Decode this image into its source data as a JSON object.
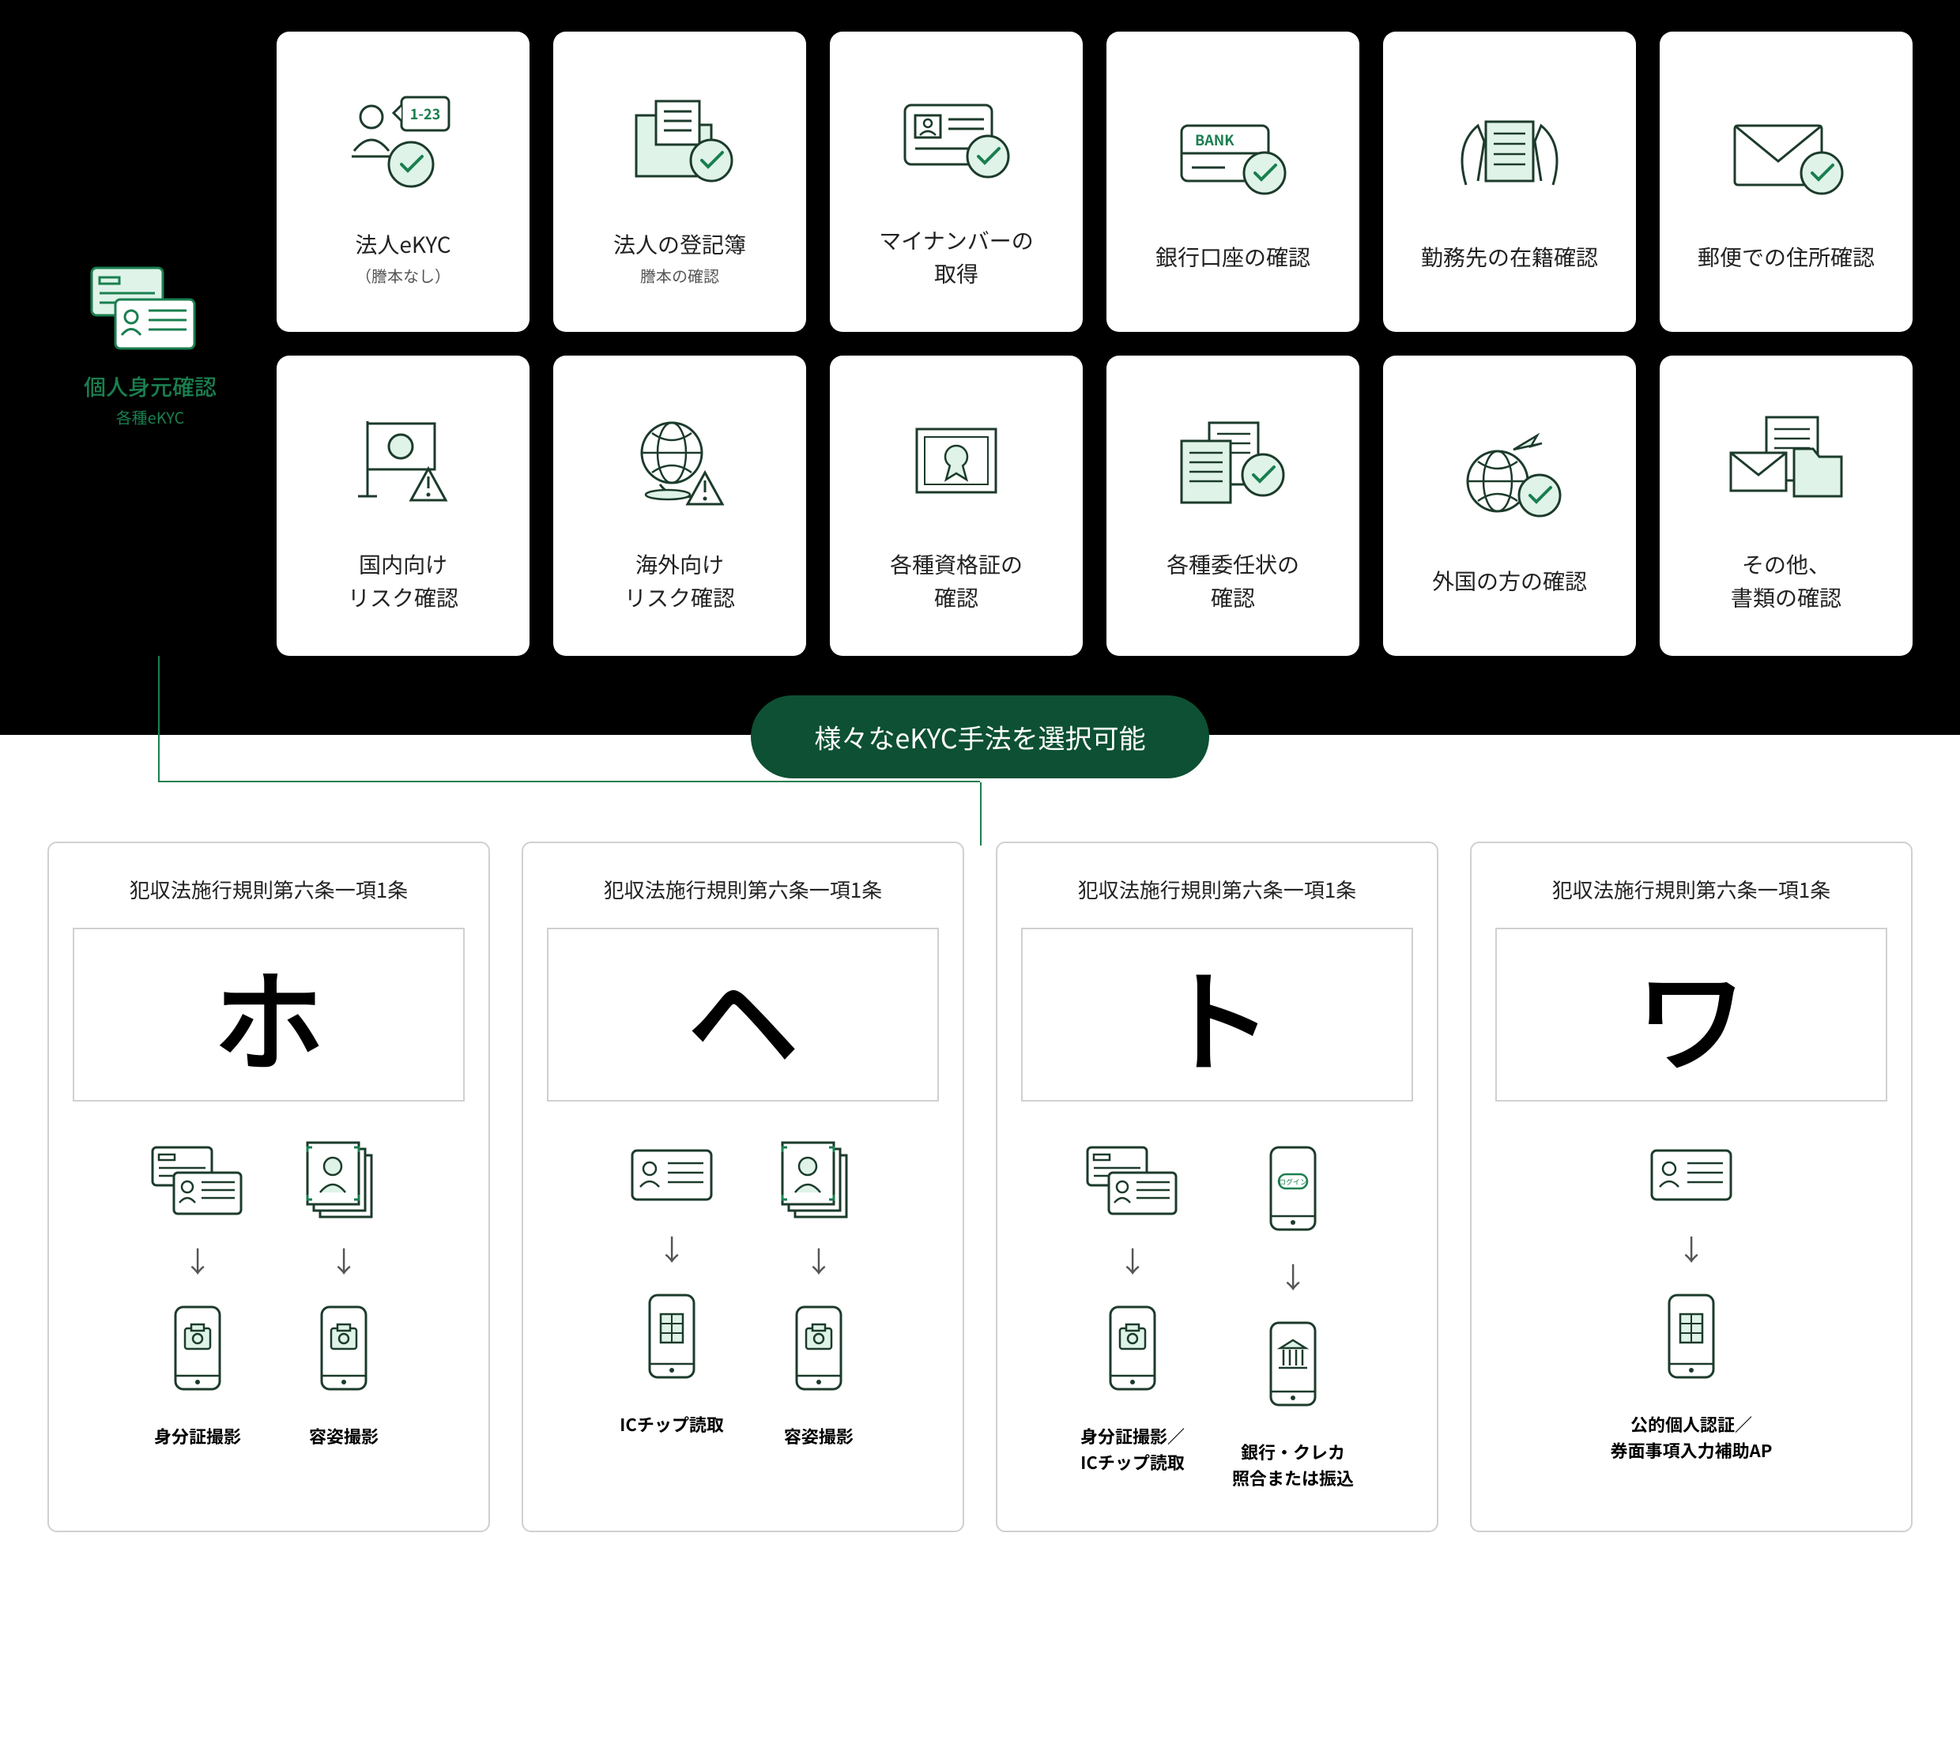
{
  "colors": {
    "green": "#1a7f4f",
    "lightgreen": "#dff3e9",
    "dark": "#0d5033",
    "black": "#000",
    "line": "#1c3b2b"
  },
  "leftCard": {
    "title": "個人身元確認",
    "subtitle": "各種eKYC"
  },
  "cards": {
    "row1": [
      {
        "title": "法人eKYC",
        "subtitle": "（謄本なし）",
        "icon": "corp-ekyc"
      },
      {
        "title": "法人の登記簿",
        "subtitle": "謄本の確認",
        "icon": "registry"
      },
      {
        "title": "マイナンバーの\n取得",
        "subtitle": "",
        "icon": "mynumber"
      },
      {
        "title": "銀行口座の確認",
        "subtitle": "",
        "icon": "bank"
      },
      {
        "title": "勤務先の在籍確認",
        "subtitle": "",
        "icon": "workplace"
      },
      {
        "title": "郵便での住所確認",
        "subtitle": "",
        "icon": "mail"
      }
    ],
    "row2": [
      {
        "title": "国内向け\nリスク確認",
        "subtitle": "",
        "icon": "domestic-risk"
      },
      {
        "title": "海外向け\nリスク確認",
        "subtitle": "",
        "icon": "overseas-risk"
      },
      {
        "title": "各種資格証の\n確認",
        "subtitle": "",
        "icon": "cert"
      },
      {
        "title": "各種委任状の\n確認",
        "subtitle": "",
        "icon": "proxy"
      },
      {
        "title": "外国の方の確認",
        "subtitle": "",
        "icon": "foreigner"
      },
      {
        "title": "その他、\n書類の確認",
        "subtitle": "",
        "icon": "other-docs"
      }
    ]
  },
  "pill": "様々なeKYC手法を選択可能",
  "methods": [
    {
      "header": "犯収法施行規則第六条一項1条",
      "glyph": "ホ",
      "flows": [
        {
          "top": "id-cards",
          "bottom": "phone-cam",
          "label": "身分証撮影"
        },
        {
          "top": "face-photo",
          "bottom": "phone-cam",
          "label": "容姿撮影"
        }
      ]
    },
    {
      "header": "犯収法施行規則第六条一項1条",
      "glyph": "ヘ",
      "flows": [
        {
          "top": "id-single",
          "bottom": "phone-chip",
          "label": "ICチップ読取"
        },
        {
          "top": "face-photo",
          "bottom": "phone-cam",
          "label": "容姿撮影"
        }
      ]
    },
    {
      "header": "犯収法施行規則第六条一項1条",
      "glyph": "ト",
      "flows": [
        {
          "top": "id-cards",
          "bottom": "phone-cam",
          "label": "身分証撮影／\nICチップ読取"
        },
        {
          "top": "phone-login",
          "bottom": "phone-bank",
          "label": "銀行・クレカ\n照合または振込"
        }
      ]
    },
    {
      "header": "犯収法施行規則第六条一項1条",
      "glyph": "ワ",
      "flows": [
        {
          "top": "id-single",
          "bottom": "phone-chip",
          "label": "公的個人認証／\n券面事項入力補助AP"
        }
      ]
    }
  ]
}
